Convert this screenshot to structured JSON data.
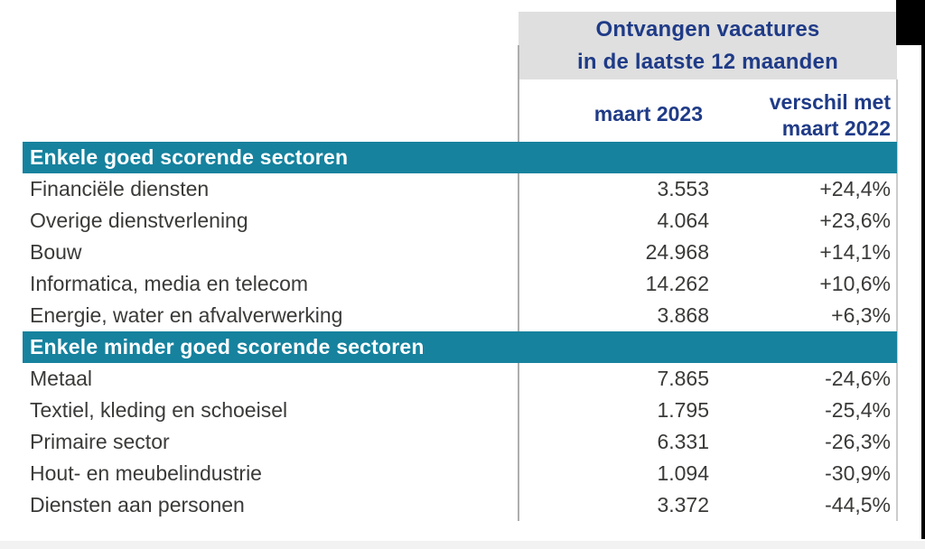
{
  "table": {
    "header": {
      "title_line1": "Ontvangen vacatures",
      "title_line2": "in de laatste 12 maanden",
      "col_value": "maart 2023",
      "col_change_line1": "verschil met",
      "col_change_line2": "maart 2022"
    },
    "sections": [
      {
        "label": "Enkele goed scorende sectoren",
        "rows": [
          {
            "sector": "Financiële diensten",
            "value": "3.553",
            "change": "+24,4%"
          },
          {
            "sector": "Overige dienstverlening",
            "value": "4.064",
            "change": "+23,6%"
          },
          {
            "sector": "Bouw",
            "value": "24.968",
            "change": "+14,1%"
          },
          {
            "sector": "Informatica, media en telecom",
            "value": "14.262",
            "change": "+10,6%"
          },
          {
            "sector": "Energie, water en afvalverwerking",
            "value": "3.868",
            "change": "+6,3%"
          }
        ]
      },
      {
        "label": "Enkele minder goed scorende sectoren",
        "rows": [
          {
            "sector": "Metaal",
            "value": "7.865",
            "change": "-24,6%"
          },
          {
            "sector": "Textiel, kleding en schoeisel",
            "value": "1.795",
            "change": "-25,4%"
          },
          {
            "sector": "Primaire sector",
            "value": "6.331",
            "change": "-26,3%"
          },
          {
            "sector": "Hout- en meubelindustrie",
            "value": "1.094",
            "change": "-30,9%"
          },
          {
            "sector": "Diensten aan personen",
            "value": "3.372",
            "change": "-44,5%"
          }
        ]
      }
    ]
  },
  "colors": {
    "section_bar": "#16829e",
    "header_background": "#dfdfdf",
    "heading_text": "#1f3b87",
    "row_text": "#3a3a38"
  },
  "chart_data": {
    "type": "table",
    "title": "Ontvangen vacatures in de laatste 12 maanden",
    "columns": [
      "sector",
      "maart 2023",
      "verschil met maart 2022"
    ],
    "groups": [
      {
        "group": "Enkele goed scorende sectoren",
        "rows": [
          [
            "Financiële diensten",
            3553,
            "+24,4%"
          ],
          [
            "Overige dienstverlening",
            4064,
            "+23,6%"
          ],
          [
            "Bouw",
            24968,
            "+14,1%"
          ],
          [
            "Informatica, media en telecom",
            14262,
            "+10,6%"
          ],
          [
            "Energie, water en afvalverwerking",
            3868,
            "+6,3%"
          ]
        ]
      },
      {
        "group": "Enkele minder goed scorende sectoren",
        "rows": [
          [
            "Metaal",
            7865,
            "-24,6%"
          ],
          [
            "Textiel, kleding en schoeisel",
            1795,
            "-25,4%"
          ],
          [
            "Primaire sector",
            6331,
            "-26,3%"
          ],
          [
            "Hout- en meubelindustrie",
            1094,
            "-30,9%"
          ],
          [
            "Diensten aan personen",
            3372,
            "-44,5%"
          ]
        ]
      }
    ]
  }
}
